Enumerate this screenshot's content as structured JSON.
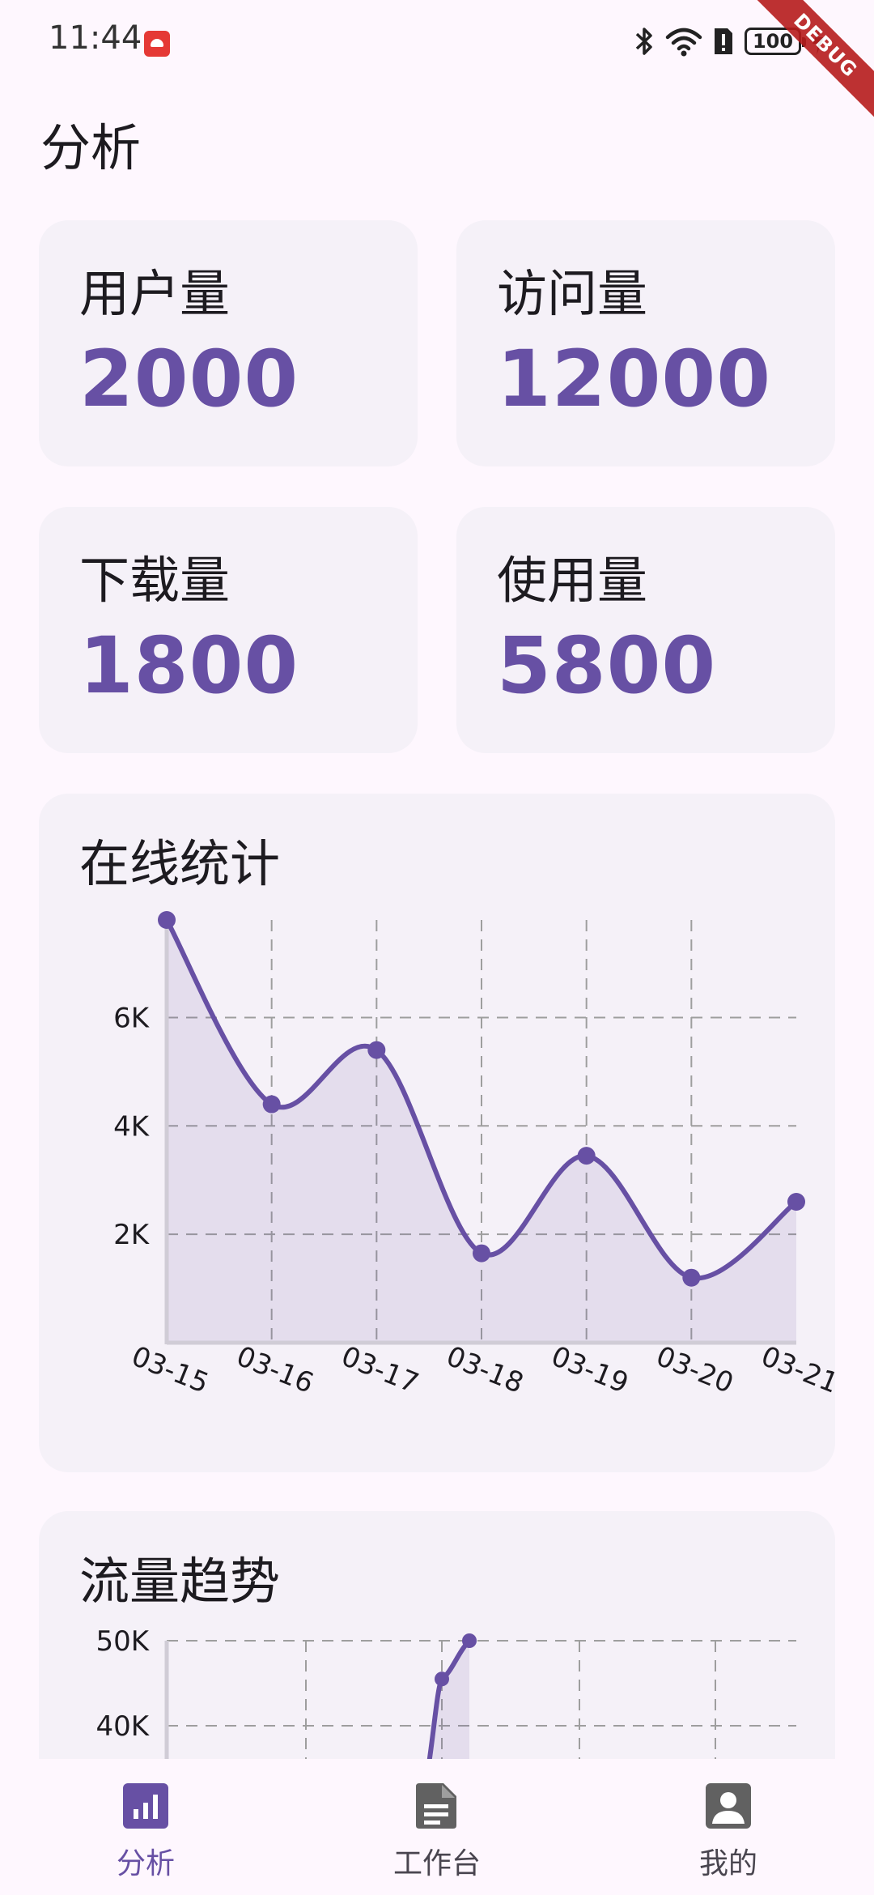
{
  "status_bar": {
    "time": "11:44",
    "battery": "100",
    "debug_label": "DEBUG"
  },
  "page": {
    "title": "分析"
  },
  "stats": [
    {
      "label": "用户量",
      "value": "2000"
    },
    {
      "label": "访问量",
      "value": "12000"
    },
    {
      "label": "下载量",
      "value": "1800"
    },
    {
      "label": "使用量",
      "value": "5800"
    }
  ],
  "online_chart": {
    "title": "在线统计",
    "chart_data": {
      "type": "area",
      "x": [
        "03-15",
        "03-16",
        "03-17",
        "03-18",
        "03-19",
        "03-20",
        "03-21"
      ],
      "series": [
        {
          "values": [
            7800,
            4400,
            5400,
            1650,
            3450,
            1200,
            2600
          ]
        }
      ],
      "ytick_labels": [
        "2K",
        "4K",
        "6K"
      ],
      "yticks": [
        2000,
        4000,
        6000
      ],
      "ylim": [
        0,
        7800
      ],
      "grid": true,
      "color": "#6750A4"
    }
  },
  "traffic_chart": {
    "title": "流量趋势",
    "chart_data": {
      "type": "area",
      "series": [
        {
          "values": [
            33000,
            45500,
            50000
          ]
        }
      ],
      "ytick_labels": [
        "40K",
        "50K"
      ],
      "yticks": [
        40000,
        50000
      ],
      "grid": true,
      "color": "#6750A4"
    }
  },
  "bottom_nav": [
    {
      "label": "分析",
      "icon": "bar-chart-icon",
      "active": true
    },
    {
      "label": "工作台",
      "icon": "document-icon",
      "active": false
    },
    {
      "label": "我的",
      "icon": "account-box-icon",
      "active": false
    }
  ],
  "colors": {
    "accent": "#6750A4",
    "card": "#F5F1F8",
    "background": "#FEF7FE"
  }
}
